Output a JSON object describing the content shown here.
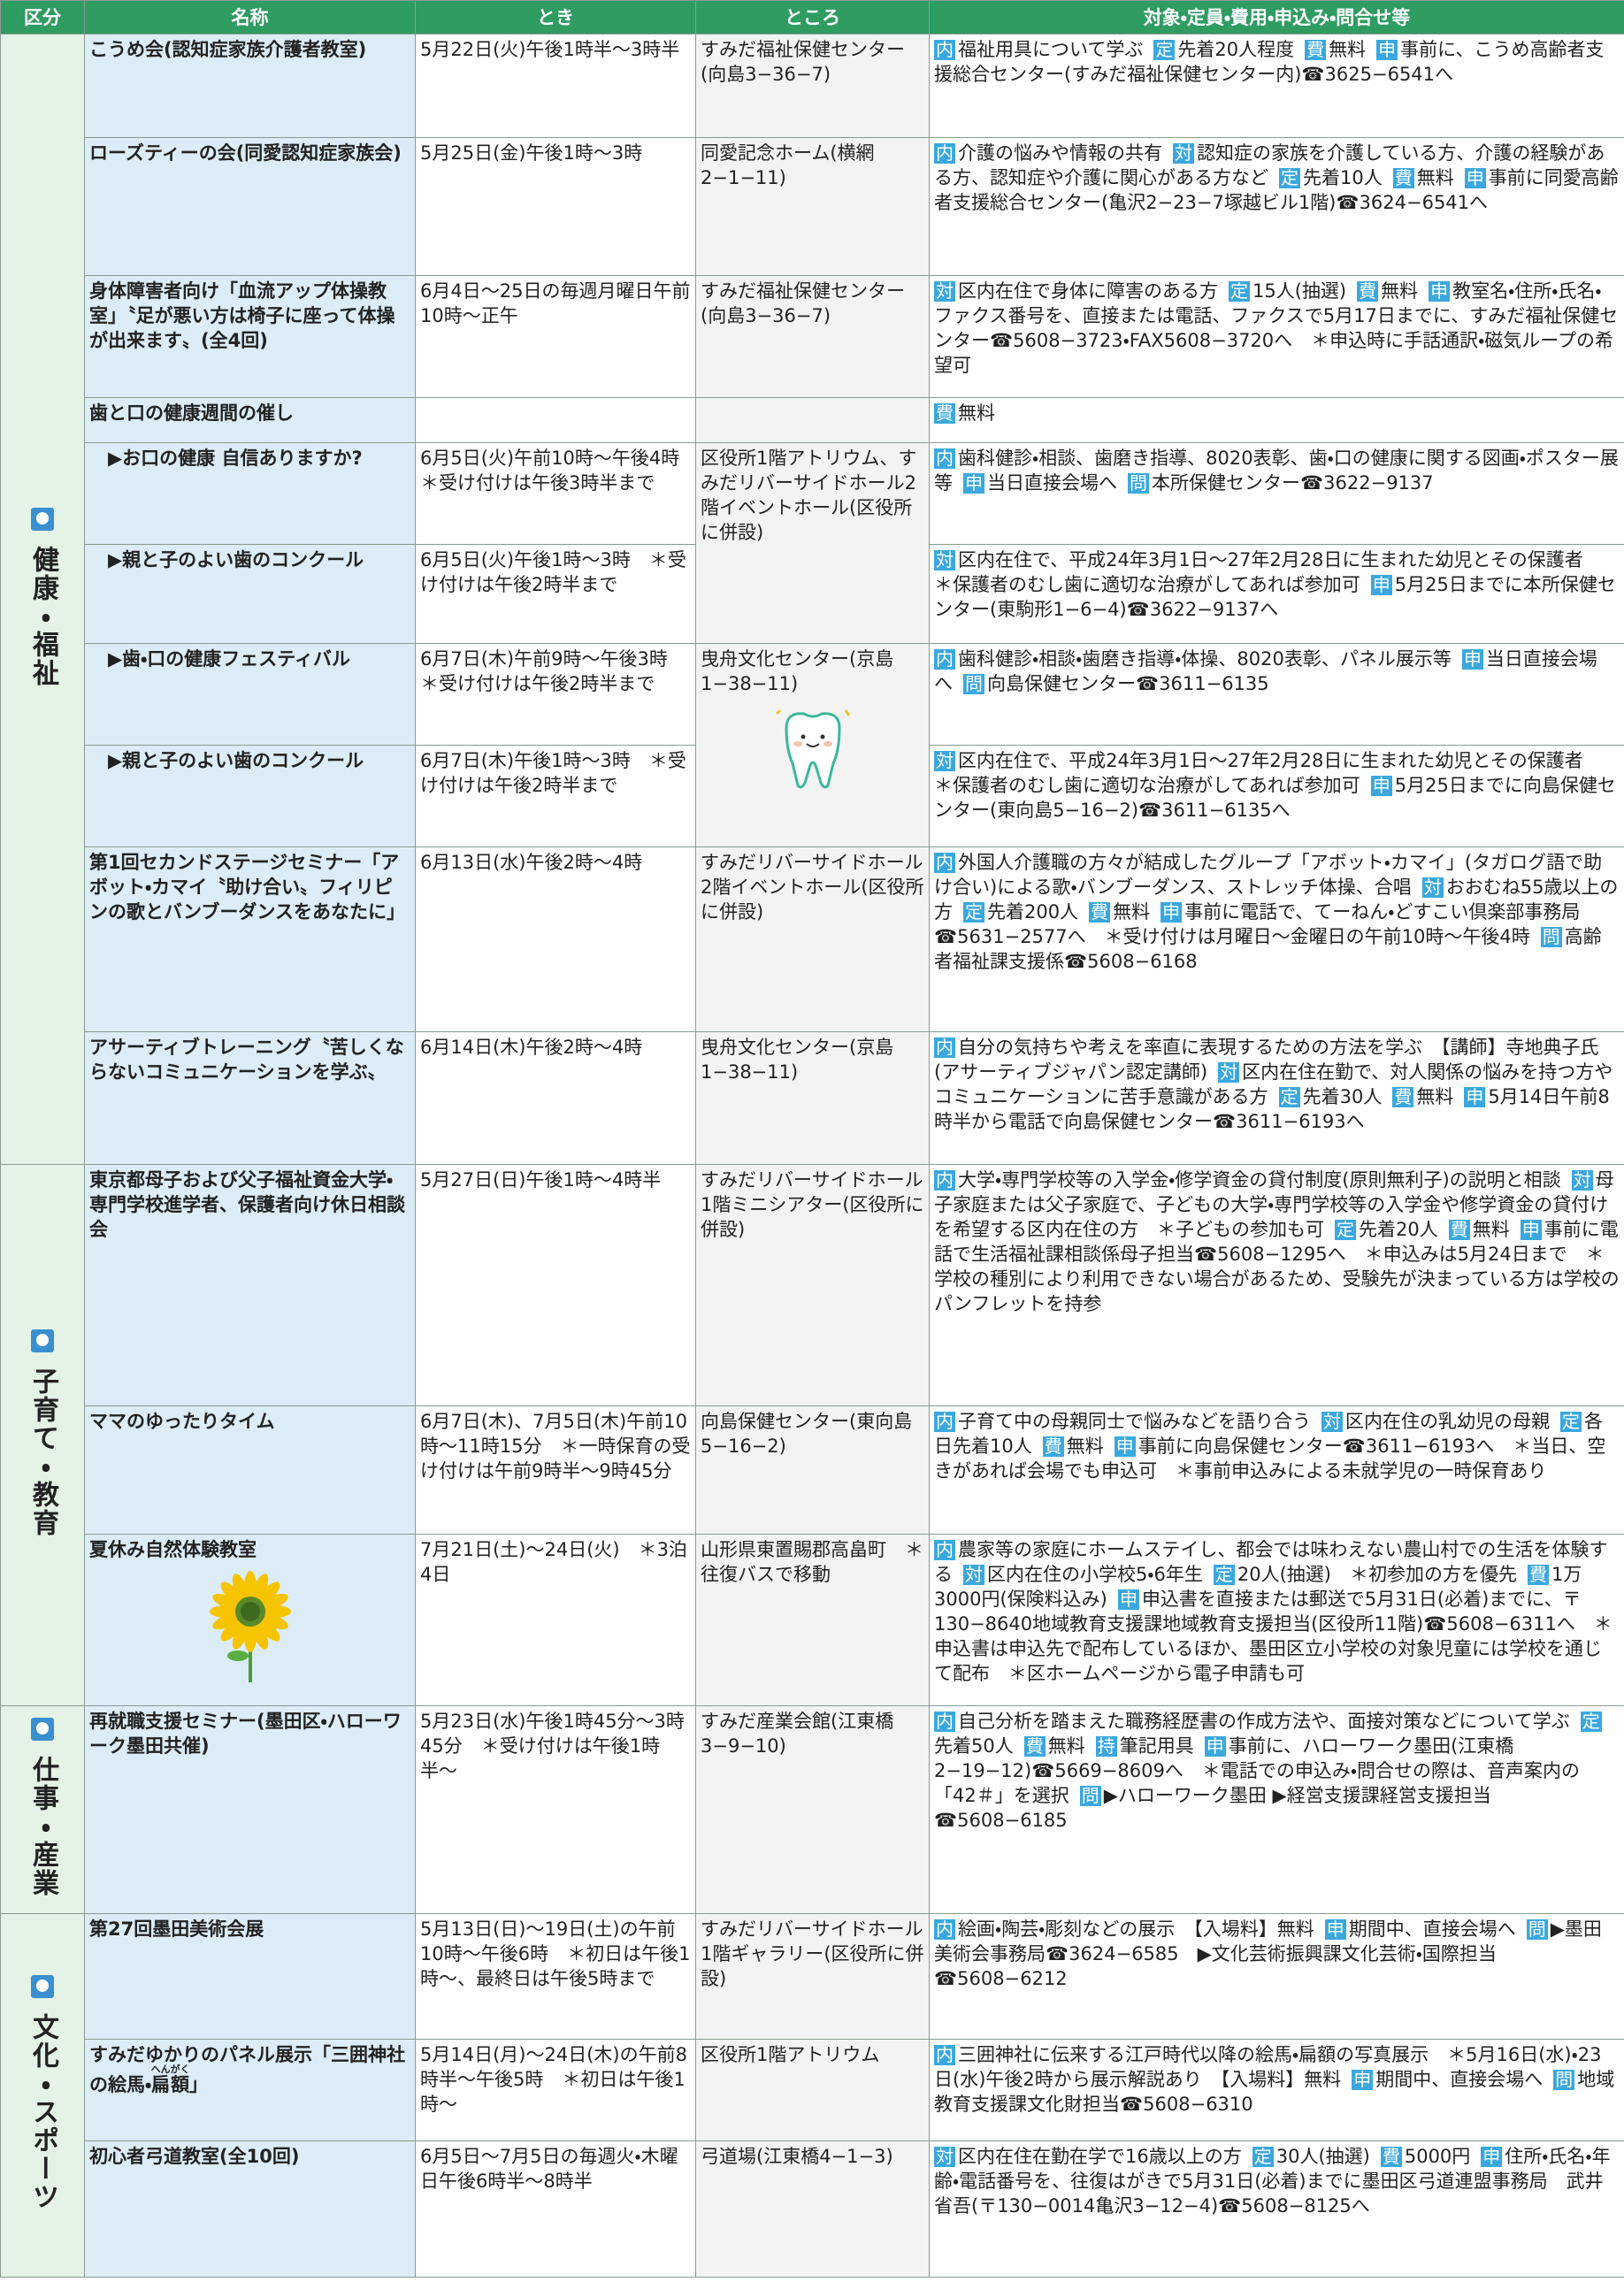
{
  "header": [
    "区分",
    "名称",
    "とき",
    "ところ",
    "対象・定員・費用・申込み・問合せ等"
  ],
  "sections": [
    {
      "label": "健康・福祉",
      "rows": [
        {
          "name": "こうめ会(認知症家族介護者教室)",
          "when": "5月22日(火)午後1時半〜3時半",
          "where": "すみだ福祉保健センター(向島3−36−7)",
          "details": [
            {
              "tag": "内",
              "text": "福祉用具について学ぶ"
            },
            {
              "tag": "定",
              "text": "先着20人程度"
            },
            {
              "tag": "費",
              "text": "無料"
            },
            {
              "tag": "申",
              "text": "事前に、こうめ高齢者支援総合センター(すみだ福祉保健センター内)☎3625−6541へ"
            }
          ]
        },
        {
          "name": "ローズティーの会(同愛認知症家族会)",
          "when": "5月25日(金)午後1時〜3時",
          "where": "同愛記念ホーム(横網2−1−11)",
          "details": [
            {
              "tag": "内",
              "text": "介護の悩みや情報の共有"
            },
            {
              "tag": "対",
              "text": "認知症の家族を介護している方、介護の経験がある方、認知症や介護に関心がある方など"
            },
            {
              "tag": "定",
              "text": "先着10人"
            },
            {
              "tag": "費",
              "text": "無料"
            },
            {
              "tag": "申",
              "text": "事前に同愛高齢者支援総合センター(亀沢2−23−7塚越ビル1階)☎3624−6541へ"
            }
          ]
        },
        {
          "name": "身体障害者向け「血流アップ体操教室」〝足が悪い方は椅子に座って体操が出来ます〟(全4回)",
          "when": "6月4日〜25日の毎週月曜日午前10時〜正午",
          "where": "すみだ福祉保健センター(向島3−36−7)",
          "details": [
            {
              "tag": "対",
              "text": "区内在住で身体に障害のある方"
            },
            {
              "tag": "定",
              "text": "15人(抽選)"
            },
            {
              "tag": "費",
              "text": "無料"
            },
            {
              "tag": "申",
              "text": "教室名・住所・氏名・ファクス番号を、直接または電話、ファクスで5月17日までに、すみだ福祉保健センター☎5608−3723・FAX5608−3720へ　＊申込時に手話通訳・磁気ループの希望可"
            }
          ]
        },
        {
          "name": "歯と口の健康週間の催し",
          "details": [
            {
              "tag": "費",
              "text": "無料"
            }
          ]
        },
        {
          "name": "▶お口の健康 自信ありますか?",
          "when": "6月5日(火)午前10時〜午後4時　＊受け付けは午後3時半まで",
          "where": "区役所1階アトリウム、すみだリバーサイドホール2階イベントホール(区役所に併設)",
          "details": [
            {
              "tag": "内",
              "text": "歯科健診・相談、歯磨き指導、8020表彰、歯・口の健康に関する図画・ポスター展等"
            },
            {
              "tag": "申",
              "text": "当日直接会場へ"
            },
            {
              "tag": "問",
              "text": "本所保健センター☎3622−9137"
            }
          ]
        },
        {
          "name": "▶親と子のよい歯のコンクール",
          "when": "6月5日(火)午後1時〜3時　＊受け付けは午後2時半まで",
          "details": [
            {
              "tag": "対",
              "text": "区内在住で、平成24年3月1日〜27年2月28日に生まれた幼児とその保護者　＊保護者のむし歯に適切な治療がしてあれば参加可"
            },
            {
              "tag": "申",
              "text": "5月25日までに本所保健センター(東駒形1−6−4)☎3622−9137へ"
            }
          ]
        },
        {
          "name": "▶歯・口の健康フェスティバル",
          "when": "6月7日(木)午前9時〜午後3時　＊受け付けは午後2時半まで",
          "where": "曳舟文化センター(京島1−38−11)",
          "details": [
            {
              "tag": "内",
              "text": "歯科健診・相談・歯磨き指導・体操、8020表彰、パネル展示等"
            },
            {
              "tag": "申",
              "text": "当日直接会場へ"
            },
            {
              "tag": "問",
              "text": "向島保健センター☎3611−6135"
            }
          ]
        },
        {
          "name": "▶親と子のよい歯のコンクール",
          "when": "6月7日(木)午後1時〜3時　＊受け付けは午後2時半まで",
          "details": [
            {
              "tag": "対",
              "text": "区内在住で、平成24年3月1日〜27年2月28日に生まれた幼児とその保護者　＊保護者のむし歯に適切な治療がしてあれば参加可"
            },
            {
              "tag": "申",
              "text": "5月25日までに向島保健センター(東向島5−16−2)☎3611−6135へ"
            }
          ]
        },
        {
          "name": "第1回セカンドステージセミナー「アボット・カマイ〝助け合い〟フィリピンの歌とバンブーダンスをあなたに」",
          "when": "6月13日(水)午後2時〜4時",
          "where": "すみだリバーサイドホール2階イベントホール(区役所に併設)",
          "details": [
            {
              "tag": "内",
              "text": "外国人介護職の方々が結成したグループ「アボット・カマイ」(タガログ語で助け合い)による歌・バンブーダンス、ストレッチ体操、合唱"
            },
            {
              "tag": "対",
              "text": "おおむね55歳以上の方"
            },
            {
              "tag": "定",
              "text": "先着200人"
            },
            {
              "tag": "費",
              "text": "無料"
            },
            {
              "tag": "申",
              "text": "事前に電話で、てーねん・どすこい倶楽部事務局☎5631−2577へ　＊受け付けは月曜日〜金曜日の午前10時〜午後4時"
            },
            {
              "tag": "問",
              "text": "高齢者福祉課支援係☎5608−6168"
            }
          ]
        },
        {
          "name": "アサーティブトレーニング〝苦しくならないコミュニケーションを学ぶ〟",
          "when": "6月14日(木)午後2時〜4時",
          "where": "曳舟文化センター(京島1−38−11)",
          "details": [
            {
              "tag": "内",
              "text": "自分の気持ちや考えを率直に表現するための方法を学ぶ　【講師】寺地典子氏(アサーティブジャパン認定講師)"
            },
            {
              "tag": "対",
              "text": "区内在住在勤で、対人関係の悩みを持つ方やコミュニケーションに苦手意識がある方"
            },
            {
              "tag": "定",
              "text": "先着30人"
            },
            {
              "tag": "費",
              "text": "無料"
            },
            {
              "tag": "申",
              "text": "5月14日午前8時半から電話で向島保健センター☎3611−6193へ"
            }
          ]
        }
      ]
    },
    {
      "label": "子育て・教育",
      "rows": [
        {
          "name": "東京都母子および父子福祉資金大学・専門学校進学者、保護者向け休日相談会",
          "when": "5月27日(日)午後1時〜4時半",
          "where": "すみだリバーサイドホール1階ミニシアター(区役所に併設)",
          "details": [
            {
              "tag": "内",
              "text": "大学・専門学校等の入学金・修学資金の貸付制度(原則無利子)の説明と相談"
            },
            {
              "tag": "対",
              "text": "母子家庭または父子家庭で、子どもの大学・専門学校等の入学金や修学資金の貸付けを希望する区内在住の方　＊子どもの参加も可"
            },
            {
              "tag": "定",
              "text": "先着20人"
            },
            {
              "tag": "費",
              "text": "無料"
            },
            {
              "tag": "申",
              "text": "事前に電話で生活福祉課相談係母子担当☎5608−1295へ　＊申込みは5月24日まで　＊学校の種別により利用できない場合があるため、受験先が決まっている方は学校のパンフレットを持参"
            }
          ]
        },
        {
          "name": "ママのゆったりタイム",
          "when": "6月7日(木)、7月5日(木)午前10時〜11時15分　＊一時保育の受け付けは午前9時半〜9時45分",
          "where": "向島保健センター(東向島5−16−2)",
          "details": [
            {
              "tag": "内",
              "text": "子育て中の母親同士で悩みなどを語り合う"
            },
            {
              "tag": "対",
              "text": "区内在住の乳幼児の母親"
            },
            {
              "tag": "定",
              "text": "各日先着10人"
            },
            {
              "tag": "費",
              "text": "無料"
            },
            {
              "tag": "申",
              "text": "事前に向島保健センター☎3611−6193へ　＊当日、空きがあれば会場でも申込可　＊事前申込みによる未就学児の一時保育あり"
            }
          ]
        },
        {
          "name": "夏休み自然体験教室",
          "when": "7月21日(土)〜24日(火)　＊3泊4日",
          "where": "山形県東置賜郡高畠町　＊往復バスで移動",
          "details": [
            {
              "tag": "内",
              "text": "農家等の家庭にホームステイし、都会では味わえない農山村での生活を体験する"
            },
            {
              "tag": "対",
              "text": "区内在住の小学校5・6年生"
            },
            {
              "tag": "定",
              "text": "20人(抽選)　＊初参加の方を優先"
            },
            {
              "tag": "費",
              "text": "1万3000円(保険料込み)"
            },
            {
              "tag": "申",
              "text": "申込書を直接または郵送で5月31日(必着)までに、〒130−8640地域教育支援課地域教育支援担当(区役所11階)☎5608−6311へ　＊申込書は申込先で配布しているほか、墨田区立小学校の対象児童には学校を通じて配布　＊区ホームページから電子申請も可"
            }
          ]
        }
      ]
    },
    {
      "label": "仕事・産業",
      "rows": [
        {
          "name": "再就職支援セミナー(墨田区・ハローワーク墨田共催)",
          "when": "5月23日(水)午後1時45分〜3時45分　＊受け付けは午後1時半〜",
          "where": "すみだ産業会館(江東橋3−9−10)",
          "details": [
            {
              "tag": "内",
              "text": "自己分析を踏まえた職務経歴書の作成方法や、面接対策などについて学ぶ"
            },
            {
              "tag": "定",
              "text": "先着50人"
            },
            {
              "tag": "費",
              "text": "無料"
            },
            {
              "tag": "持",
              "text": "筆記用具"
            },
            {
              "tag": "申",
              "text": "事前に、ハローワーク墨田(江東橋2−19−12)☎5669−8609へ　＊電話での申込み・問合せの際は、音声案内の「42＃」を選択"
            },
            {
              "tag": "問",
              "text": "▶ハローワーク墨田 ▶経営支援課経営支援担当☎5608−6185"
            }
          ]
        }
      ]
    },
    {
      "label": "文化・スポーツ",
      "rows": [
        {
          "name": "第27回墨田美術会展",
          "when": "5月13日(日)〜19日(土)の午前10時〜午後6時　＊初日は午後1時〜、最終日は午後5時まで",
          "where": "すみだリバーサイドホール1階ギャラリー(区役所に併設)",
          "details": [
            {
              "tag": "内",
              "text": "絵画・陶芸・彫刻などの展示　【入場料】無料"
            },
            {
              "tag": "申",
              "text": "期間中、直接会場へ"
            },
            {
              "tag": "問",
              "text": "▶墨田美術会事務局☎3624−6585　▶文化芸術振興課文化芸術・国際担当☎5608−6212"
            }
          ]
        },
        {
          "name": [
            "すみだゆかりのパネル展示「三囲神社の絵馬・",
            {
              "base": "扁額",
              "ruby": "へんがく"
            },
            "」"
          ],
          "when": "5月14日(月)〜24日(木)の午前8時半〜午後5時　＊初日は午後1時〜",
          "where": "区役所1階アトリウム",
          "details": [
            {
              "tag": "内",
              "text": "三囲神社に伝来する江戸時代以降の絵馬・扁額の写真展示　＊5月16日(水)・23日(水)午後2時から展示解説あり　【入場料】無料"
            },
            {
              "tag": "申",
              "text": "期間中、直接会場へ"
            },
            {
              "tag": "問",
              "text": "地域教育支援課文化財担当☎5608−6310"
            }
          ]
        },
        {
          "name": "初心者弓道教室(全10回)",
          "when": "6月5日〜7月5日の毎週火・木曜日午後6時半〜8時半",
          "where": "弓道場(江東橋4−1−3)",
          "details": [
            {
              "tag": "対",
              "text": "区内在住在勤在学で16歳以上の方"
            },
            {
              "tag": "定",
              "text": "30人(抽選)"
            },
            {
              "tag": "費",
              "text": "5000円"
            },
            {
              "tag": "申",
              "text": "住所・氏名・年齢・電話番号を、往復はがきで5月31日(必着)までに墨田区弓道連盟事務局　武井省吾(〒130−0014亀沢3−12−4)☎5608−8125へ"
            }
          ]
        }
      ]
    }
  ]
}
